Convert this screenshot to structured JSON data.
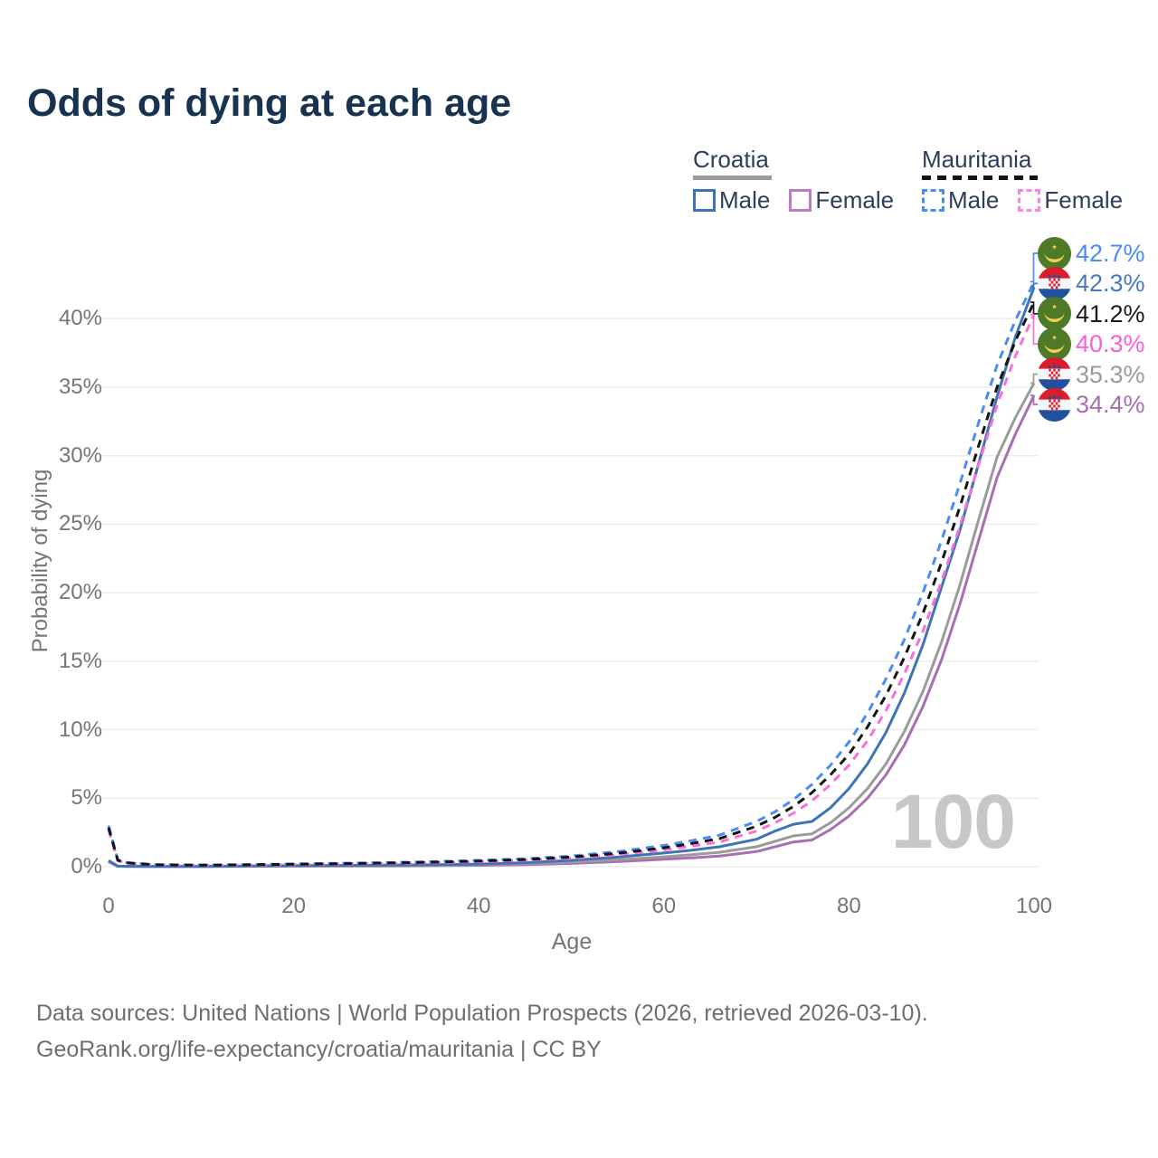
{
  "title": "Odds of dying at each age",
  "watermark": {
    "text": "100"
  },
  "legend": {
    "groups": [
      {
        "country": "Croatia",
        "line_style": "solid",
        "rule_color": "#9b9b9b",
        "items": [
          {
            "label": "Male",
            "color": "#3e74b5"
          },
          {
            "label": "Female",
            "color": "#b87fc0"
          }
        ]
      },
      {
        "country": "Mauritania",
        "line_style": "dashed",
        "rule_color": "#141414",
        "items": [
          {
            "label": "Male",
            "color": "#4b8bf5"
          },
          {
            "label": "Female",
            "color": "#fb85e2"
          }
        ]
      }
    ]
  },
  "axes": {
    "x": {
      "label": "Age",
      "tick_labels": [
        "0",
        "20",
        "40",
        "60",
        "80",
        "100"
      ],
      "tick_values": [
        0,
        20,
        40,
        60,
        80,
        100
      ]
    },
    "y": {
      "label": "Probability of dying",
      "tick_labels": [
        "0%",
        "5%",
        "10%",
        "15%",
        "20%",
        "25%",
        "30%",
        "35%",
        "40%"
      ],
      "tick_values": [
        0,
        5,
        10,
        15,
        20,
        25,
        30,
        35,
        40
      ]
    }
  },
  "end_labels": [
    {
      "series": "mauritania-male",
      "value": "42.7%",
      "flag": "mauritania",
      "color": "#4b8bf5"
    },
    {
      "series": "croatia-male",
      "value": "42.3%",
      "flag": "croatia",
      "color": "#4a79ba"
    },
    {
      "series": "mauritania-both",
      "value": "41.2%",
      "flag": "mauritania",
      "color": "#1a1a1a"
    },
    {
      "series": "mauritania-female",
      "value": "40.3%",
      "flag": "mauritania",
      "color": "#fb5fd8"
    },
    {
      "series": "croatia-both",
      "value": "35.3%",
      "flag": "croatia",
      "color": "#9b9b9b"
    },
    {
      "series": "croatia-female",
      "value": "34.4%",
      "flag": "croatia",
      "color": "#a76fb2"
    }
  ],
  "footer": {
    "line1": "Data sources: United Nations | World Population Prospects (2026, retrieved 2026-03-10).",
    "line2": "GeoRank.org/life-expectancy/croatia/mauritania | CC BY"
  },
  "chart_data": {
    "type": "line",
    "title": "Odds of dying at each age",
    "xlabel": "Age",
    "ylabel": "Probability of dying",
    "xlim": [
      0,
      100
    ],
    "ylim": [
      0,
      44
    ],
    "grid": "horizontal",
    "legend_position": "top-right",
    "x": [
      0,
      1,
      2,
      5,
      10,
      15,
      20,
      25,
      30,
      35,
      40,
      45,
      50,
      55,
      60,
      63,
      66,
      70,
      72,
      74,
      76,
      78,
      80,
      82,
      84,
      86,
      88,
      90,
      92,
      94,
      96,
      98,
      100
    ],
    "series": [
      {
        "name": "croatia-female",
        "display": "Croatia Female",
        "country": "Croatia",
        "sex": "Female",
        "color": "#a76fb2",
        "dash": false,
        "end_value_pct": 34.4,
        "values": [
          0.35,
          0.03,
          0.02,
          0.01,
          0.01,
          0.025,
          0.04,
          0.045,
          0.055,
          0.075,
          0.1,
          0.15,
          0.24,
          0.37,
          0.54,
          0.65,
          0.78,
          1.1,
          1.45,
          1.8,
          1.95,
          2.7,
          3.7,
          5.0,
          6.7,
          8.9,
          11.7,
          15.1,
          19.2,
          23.8,
          28.4,
          31.6,
          34.4
        ]
      },
      {
        "name": "croatia-both",
        "display": "Croatia",
        "country": "Croatia",
        "sex": "Both",
        "color": "#9b9b9b",
        "dash": false,
        "end_value_pct": 35.3,
        "values": [
          0.4,
          0.035,
          0.025,
          0.015,
          0.015,
          0.035,
          0.055,
          0.065,
          0.075,
          0.1,
          0.14,
          0.21,
          0.33,
          0.5,
          0.72,
          0.87,
          1.05,
          1.45,
          1.85,
          2.25,
          2.4,
          3.2,
          4.3,
          5.7,
          7.5,
          9.9,
          12.8,
          16.4,
          20.6,
          25.3,
          29.9,
          32.8,
          35.3
        ]
      },
      {
        "name": "croatia-male",
        "display": "Croatia Male",
        "country": "Croatia",
        "sex": "Male",
        "color": "#3e74b5",
        "dash": false,
        "end_value_pct": 42.3,
        "values": [
          0.45,
          0.04,
          0.03,
          0.02,
          0.02,
          0.05,
          0.08,
          0.09,
          0.11,
          0.14,
          0.19,
          0.29,
          0.46,
          0.7,
          1.0,
          1.2,
          1.45,
          2.0,
          2.6,
          3.1,
          3.3,
          4.3,
          5.7,
          7.5,
          9.8,
          12.7,
          16.2,
          20.4,
          24.6,
          29.4,
          34.3,
          38.7,
          42.3
        ]
      },
      {
        "name": "mauritania-male",
        "display": "Mauritania Male",
        "country": "Mauritania",
        "sex": "Male",
        "color": "#4b8bf5",
        "dash": true,
        "end_value_pct": 42.7,
        "values": [
          3.0,
          0.5,
          0.3,
          0.15,
          0.12,
          0.15,
          0.2,
          0.25,
          0.3,
          0.37,
          0.46,
          0.58,
          0.78,
          1.1,
          1.55,
          1.9,
          2.3,
          3.3,
          4.0,
          4.9,
          6.0,
          7.4,
          9.1,
          11.2,
          13.7,
          16.6,
          20.0,
          23.8,
          28.0,
          32.4,
          36.6,
          39.9,
          42.7
        ]
      },
      {
        "name": "mauritania-female",
        "display": "Mauritania Female",
        "country": "Mauritania",
        "sex": "Female",
        "color": "#fb6ed8",
        "dash": true,
        "end_value_pct": 40.3,
        "values": [
          2.7,
          0.44,
          0.26,
          0.13,
          0.1,
          0.12,
          0.15,
          0.19,
          0.24,
          0.29,
          0.36,
          0.46,
          0.62,
          0.87,
          1.22,
          1.5,
          1.8,
          2.6,
          3.2,
          3.9,
          4.8,
          6.0,
          7.4,
          9.2,
          11.4,
          14.1,
          17.2,
          20.8,
          24.9,
          29.3,
          33.7,
          37.3,
          40.3
        ]
      },
      {
        "name": "mauritania-both",
        "display": "Mauritania",
        "country": "Mauritania",
        "sex": "Both",
        "color": "#141414",
        "dash": true,
        "end_value_pct": 41.2,
        "values": [
          2.85,
          0.47,
          0.28,
          0.14,
          0.11,
          0.14,
          0.18,
          0.22,
          0.27,
          0.33,
          0.41,
          0.52,
          0.7,
          0.98,
          1.38,
          1.7,
          2.05,
          2.95,
          3.6,
          4.4,
          5.4,
          6.7,
          8.2,
          10.2,
          12.5,
          15.3,
          18.5,
          22.2,
          26.3,
          30.7,
          35.0,
          38.4,
          41.2
        ]
      }
    ]
  }
}
